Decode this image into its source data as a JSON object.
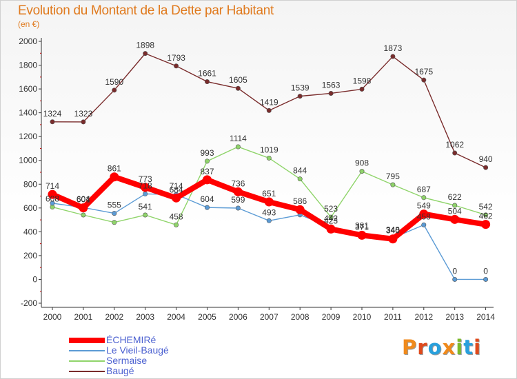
{
  "title": "Evolution du Montant de la Dette par Habitant",
  "subtitle": "(en €)",
  "brand": {
    "text": "Proxiti",
    "colors": [
      "#f08a1c",
      "#e04a1c",
      "#29a0dc",
      "#f08a1c",
      "#7cba2c",
      "#29a0dc",
      "#e04a1c"
    ]
  },
  "chart_data": {
    "type": "line",
    "x": [
      "2000",
      "2001",
      "2002",
      "2003",
      "2004",
      "2005",
      "2006",
      "2007",
      "2008",
      "2009",
      "2010",
      "2011",
      "2012",
      "2013",
      "2014"
    ],
    "ylim": [
      -200,
      2000
    ],
    "yticks": [
      -200,
      0,
      200,
      400,
      600,
      800,
      1000,
      1200,
      1400,
      1600,
      1800,
      2000
    ],
    "grid": false,
    "legend_position": "bottom-left",
    "series": [
      {
        "name": "Baugé",
        "color": "#7a2c2c",
        "values": [
          1324,
          1323,
          1590,
          1898,
          1793,
          1661,
          1605,
          1419,
          1539,
          1563,
          1598,
          1873,
          1675,
          1062,
          940
        ],
        "labels": [
          "1324",
          "1323",
          "1590",
          "1898",
          "1793",
          "1661",
          "1605",
          "1419",
          "1539",
          "1563",
          "1598",
          "1873",
          "1675",
          "1062",
          "940"
        ]
      },
      {
        "name": "Sermaise",
        "color": "#8fd46a",
        "values": [
          608,
          541,
          479,
          541,
          458,
          993,
          1114,
          1019,
          844,
          523,
          908,
          795,
          687,
          622,
          542
        ],
        "labels": [
          "608",
          "",
          "",
          "541",
          "458",
          "993",
          "1114",
          "1019",
          "844",
          "523",
          "908",
          "795",
          "687",
          "622",
          "542"
        ]
      },
      {
        "name": "Le Vieil-Baugé",
        "color": "#5b9bd5",
        "values": [
          640,
          604,
          555,
          718,
          714,
          604,
          599,
          493,
          542,
          442,
          381,
          348,
          458,
          0,
          0
        ],
        "labels": [
          "",
          "604",
          "555",
          "718",
          "714",
          "604",
          "599",
          "493",
          "",
          "442",
          "381",
          "348",
          "458",
          "0",
          "0"
        ]
      },
      {
        "name": "ÉCHEMIRé",
        "color": "#ff0000",
        "values": [
          714,
          601,
          861,
          773,
          684,
          837,
          736,
          651,
          586,
          423,
          371,
          340,
          549,
          504,
          462
        ],
        "labels": [
          "714",
          "601",
          "861",
          "773",
          "684",
          "837",
          "736",
          "651",
          "586",
          "423",
          "371",
          "340",
          "549",
          "504",
          "462"
        ]
      }
    ],
    "legend": [
      "ÉCHEMIRé",
      "Le Vieil-Baugé",
      "Sermaise",
      "Baugé"
    ]
  }
}
